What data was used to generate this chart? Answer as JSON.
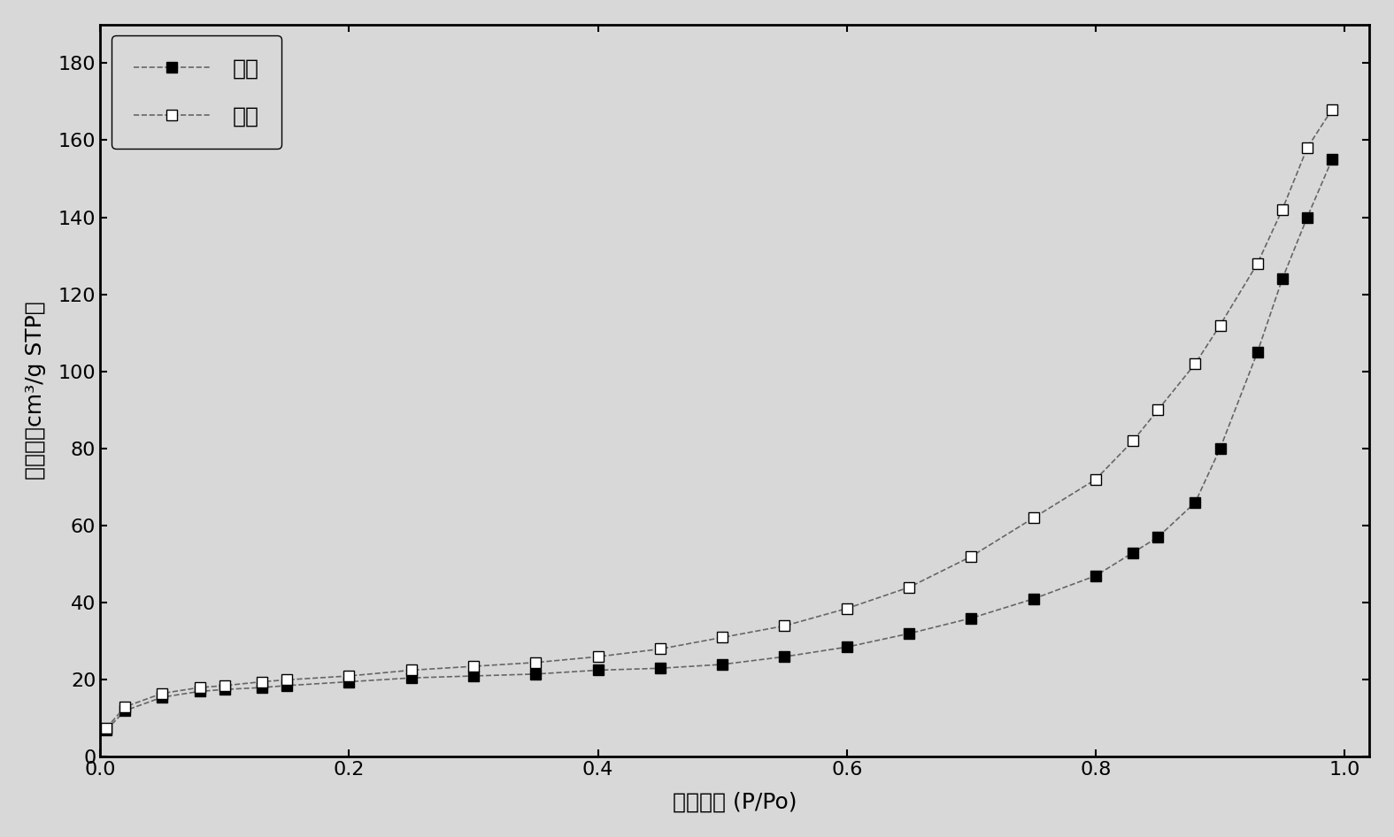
{
  "adsorption_x": [
    0.005,
    0.02,
    0.05,
    0.08,
    0.1,
    0.13,
    0.15,
    0.2,
    0.25,
    0.3,
    0.35,
    0.4,
    0.45,
    0.5,
    0.55,
    0.6,
    0.65,
    0.7,
    0.75,
    0.8,
    0.83,
    0.85,
    0.88,
    0.9,
    0.93,
    0.95,
    0.97,
    0.99
  ],
  "adsorption_y": [
    7.0,
    12.0,
    15.5,
    17.0,
    17.5,
    18.0,
    18.5,
    19.5,
    20.5,
    21.0,
    21.5,
    22.5,
    23.0,
    24.0,
    26.0,
    28.5,
    32.0,
    36.0,
    41.0,
    47.0,
    53.0,
    57.0,
    66.0,
    80.0,
    105.0,
    124.0,
    140.0,
    155.0
  ],
  "desorption_x": [
    0.005,
    0.02,
    0.05,
    0.08,
    0.1,
    0.13,
    0.15,
    0.2,
    0.25,
    0.3,
    0.35,
    0.4,
    0.45,
    0.5,
    0.55,
    0.6,
    0.65,
    0.7,
    0.75,
    0.8,
    0.83,
    0.85,
    0.88,
    0.9,
    0.93,
    0.95,
    0.97,
    0.99
  ],
  "desorption_y": [
    7.5,
    13.0,
    16.5,
    18.0,
    18.5,
    19.5,
    20.0,
    21.0,
    22.5,
    23.5,
    24.5,
    26.0,
    28.0,
    31.0,
    34.0,
    38.5,
    44.0,
    52.0,
    62.0,
    72.0,
    82.0,
    90.0,
    102.0,
    112.0,
    128.0,
    142.0,
    158.0,
    168.0
  ],
  "xlabel": "相对压力 (P/Po)",
  "ylabel": "吸附量（cm³/g STP）",
  "legend_adsorption": "吸附",
  "legend_desorption": "脱附",
  "xlim": [
    0.0,
    1.02
  ],
  "ylim": [
    0,
    190
  ],
  "yticks": [
    0,
    20,
    40,
    60,
    80,
    100,
    120,
    140,
    160,
    180
  ],
  "xticks": [
    0.0,
    0.2,
    0.4,
    0.6,
    0.8,
    1.0
  ],
  "line_color": "#666666",
  "background_color": "#d8d8d8"
}
